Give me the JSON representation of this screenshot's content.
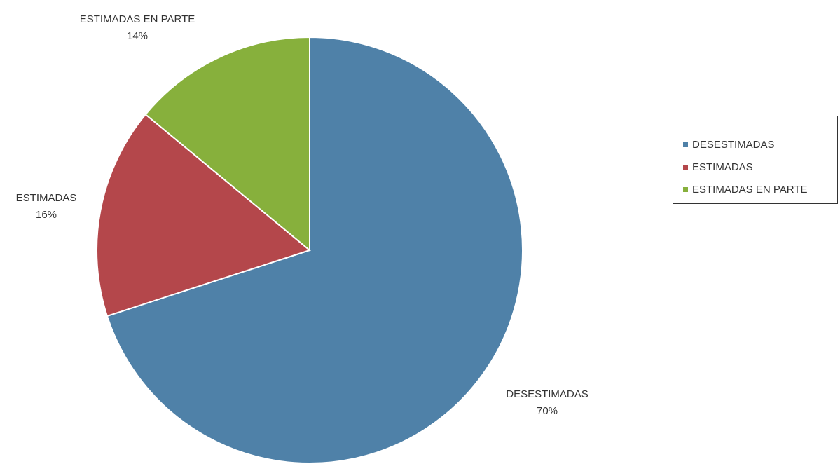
{
  "chart_data": {
    "type": "pie",
    "start_angle_deg": 0,
    "direction": "clockwise",
    "legend_position": "right",
    "slices": [
      {
        "label": "DESESTIMADAS",
        "value": 70,
        "percent_label": "70%",
        "color": "#4f81a8"
      },
      {
        "label": "ESTIMADAS",
        "value": 16,
        "percent_label": "16%",
        "color": "#b4474b"
      },
      {
        "label": "ESTIMADAS EN PARTE",
        "value": 14,
        "percent_label": "14%",
        "color": "#87b03c"
      }
    ]
  }
}
